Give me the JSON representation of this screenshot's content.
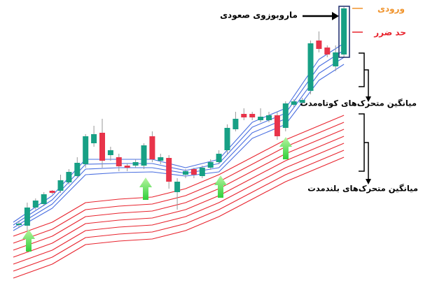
{
  "chart_data": {
    "type": "candlestick",
    "ylim": [
      0,
      400
    ],
    "up_color": "#17a085",
    "down_color": "#e8344a",
    "open": [
      78,
      77,
      103,
      108,
      127,
      127,
      139,
      148,
      165,
      195,
      210,
      178,
      175,
      163,
      163,
      163,
      205,
      170,
      174,
      125,
      150,
      158,
      148,
      160,
      168,
      185,
      215,
      237,
      237,
      228,
      228,
      235,
      217,
      250,
      253,
      270,
      342,
      332,
      305,
      322
    ],
    "close": [
      80,
      103,
      113,
      122,
      124,
      142,
      154,
      167,
      205,
      208,
      170,
      185,
      162,
      160,
      168,
      192,
      172,
      175,
      140,
      140,
      155,
      150,
      160,
      168,
      180,
      217,
      230,
      232,
      232,
      233,
      235,
      205,
      252,
      255,
      257,
      338,
      330,
      322,
      325,
      388
    ],
    "high": [
      83,
      110,
      116,
      125,
      128,
      150,
      158,
      175,
      208,
      220,
      230,
      190,
      180,
      166,
      172,
      195,
      212,
      180,
      178,
      145,
      158,
      160,
      163,
      172,
      185,
      222,
      240,
      245,
      240,
      245,
      240,
      240,
      255,
      258,
      260,
      342,
      355,
      335,
      335,
      390
    ],
    "low": [
      75,
      70,
      100,
      105,
      122,
      124,
      136,
      145,
      160,
      190,
      160,
      170,
      155,
      155,
      160,
      158,
      168,
      165,
      130,
      100,
      145,
      145,
      145,
      157,
      165,
      180,
      212,
      228,
      228,
      225,
      225,
      200,
      212,
      247,
      250,
      265,
      325,
      318,
      298,
      318
    ],
    "ma_x": [
      0,
      4,
      8,
      12,
      16,
      20,
      24,
      28,
      32,
      36,
      39
    ],
    "short_ma": {
      "color": "#4a6fe0",
      "lines": [
        [
          82,
          120,
          172,
          172,
          172,
          160,
          172,
          225,
          245,
          315,
          338
        ],
        [
          78,
          114,
          165,
          166,
          166,
          156,
          166,
          218,
          238,
          305,
          328
        ],
        [
          74,
          108,
          158,
          160,
          160,
          152,
          160,
          210,
          230,
          295,
          318
        ],
        [
          70,
          102,
          150,
          153,
          154,
          148,
          154,
          202,
          222,
          285,
          308
        ]
      ]
    },
    "long_ma": {
      "color": "#e8242e",
      "lines": [
        [
          62,
          82,
          110,
          115,
          118,
          130,
          150,
          175,
          200,
          220,
          235
        ],
        [
          52,
          72,
          100,
          105,
          108,
          120,
          140,
          165,
          190,
          210,
          225
        ],
        [
          42,
          62,
          90,
          95,
          98,
          110,
          130,
          155,
          180,
          200,
          215
        ],
        [
          32,
          52,
          80,
          85,
          88,
          100,
          120,
          145,
          170,
          190,
          205
        ],
        [
          22,
          42,
          70,
          75,
          78,
          90,
          110,
          135,
          160,
          180,
          195
        ],
        [
          12,
          32,
          60,
          65,
          68,
          80,
          100,
          125,
          150,
          170,
          185
        ],
        [
          2,
          22,
          50,
          55,
          58,
          70,
          90,
          115,
          140,
          160,
          175
        ]
      ]
    },
    "annotations": {
      "entry": "ورودی",
      "stop_loss": "حد ضرر",
      "pattern": "ماروبوزوی صعودی",
      "short_label": "میانگین متحرک‌های کوتاه‌مدت",
      "long_label": "میانگین متحرک‌های بلندمدت"
    }
  }
}
